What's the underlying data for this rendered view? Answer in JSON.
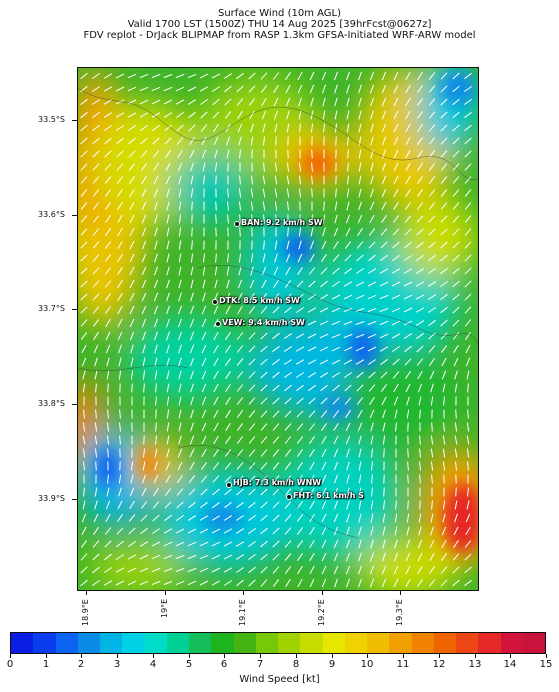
{
  "header": {
    "line1": "Surface Wind (10m AGL)",
    "line2": "Valid 1700 LST (1500Z) THU 14 Aug 2025 [39hrFcst@0627z]",
    "line3": "FDV replot - DrJack BLIPMAP from RASP 1.3km GFSA-Initiated WRF-ARW model"
  },
  "axes": {
    "lat_labels": [
      "33.5°S",
      "33.6°S",
      "33.7°S",
      "33.8°S",
      "33.9°S"
    ],
    "lon_labels": [
      "18.9°E",
      "19°E",
      "19.1°E",
      "19.2°E",
      "19.3°E"
    ]
  },
  "stations": [
    {
      "id": "BAN",
      "label": "BAN: 9.2 km/h SW"
    },
    {
      "id": "DTK",
      "label": "DTK: 8.5 km/h SW"
    },
    {
      "id": "VEW",
      "label": "VEW: 9.4 km/h SW"
    },
    {
      "id": "HJB",
      "label": "HJB: 7.3 km/h WNW"
    },
    {
      "id": "FHT",
      "label": "FHT: 6.1 km/h S"
    }
  ],
  "colorbar": {
    "title": "Wind Speed [kt]",
    "ticks": [
      "0",
      "1",
      "2",
      "3",
      "4",
      "5",
      "6",
      "7",
      "8",
      "9",
      "10",
      "11",
      "12",
      "13",
      "14",
      "15"
    ],
    "colors": [
      "#0a1ee6",
      "#0a3cf0",
      "#0a64f0",
      "#0a8ce6",
      "#00b4e6",
      "#00d2e6",
      "#00dcc8",
      "#00d296",
      "#14be5a",
      "#1eb41e",
      "#46b414",
      "#78c80a",
      "#a0d200",
      "#c8dc00",
      "#e6e600",
      "#f0d200",
      "#f0be00",
      "#f0a000",
      "#f08200",
      "#f06400",
      "#eb4614",
      "#e62828",
      "#d2143c",
      "#c8143c"
    ]
  }
}
